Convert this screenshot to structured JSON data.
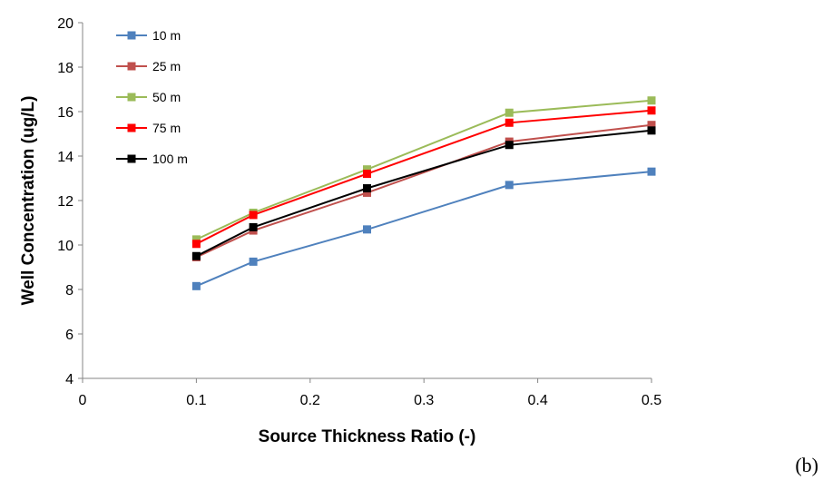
{
  "panel_label": "(b)",
  "chart_data": {
    "type": "line",
    "title": "",
    "xlabel": "Source Thickness Ratio (-)",
    "ylabel": "Well Concentration (ug/L)",
    "xlim": [
      0,
      0.5
    ],
    "ylim": [
      4,
      20
    ],
    "xticks": [
      0,
      0.1,
      0.2,
      0.3,
      0.4,
      0.5
    ],
    "xtick_labels": [
      "0",
      "0.1",
      "0.2",
      "0.3",
      "0.4",
      "0.5"
    ],
    "yticks": [
      4,
      6,
      8,
      10,
      12,
      14,
      16,
      18,
      20
    ],
    "ytick_labels": [
      "4",
      "6",
      "8",
      "10",
      "12",
      "14",
      "16",
      "18",
      "20"
    ],
    "grid": false,
    "legend_position": "top-left",
    "x": [
      0.1,
      0.15,
      0.25,
      0.375,
      0.5
    ],
    "series": [
      {
        "name": "10 m",
        "color": "#4F81BD",
        "values": [
          8.15,
          9.25,
          10.7,
          12.7,
          13.3
        ]
      },
      {
        "name": "25 m",
        "color": "#C0504D",
        "values": [
          9.45,
          10.65,
          12.35,
          14.65,
          15.4
        ]
      },
      {
        "name": "50 m",
        "color": "#9BBB59",
        "values": [
          10.25,
          11.45,
          13.4,
          15.95,
          16.5
        ]
      },
      {
        "name": "75 m",
        "color": "#FF0000",
        "values": [
          10.05,
          11.35,
          13.2,
          15.5,
          16.05
        ]
      },
      {
        "name": "100 m",
        "color": "#000000",
        "values": [
          9.5,
          10.8,
          12.55,
          14.5,
          15.15
        ]
      }
    ]
  }
}
